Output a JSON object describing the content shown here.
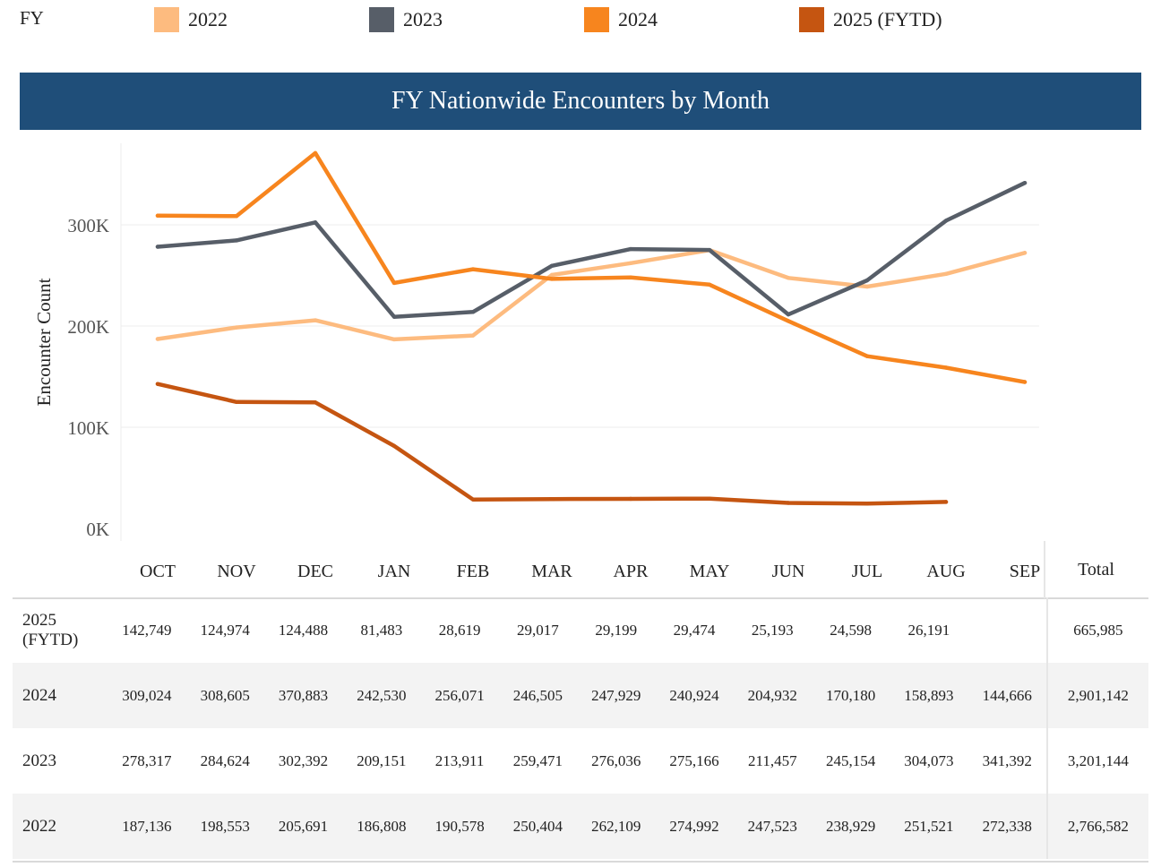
{
  "legend": {
    "title": "FY",
    "items": [
      {
        "label": "2022",
        "color": "#fdbb7f"
      },
      {
        "label": "2023",
        "color": "#575e68"
      },
      {
        "label": "2024",
        "color": "#f7851e"
      },
      {
        "label": "2025 (FYTD)",
        "color": "#c55511"
      }
    ]
  },
  "banner": {
    "title": "FY Nationwide Encounters by Month",
    "color": "#1f4e79"
  },
  "chart_data": {
    "type": "line",
    "title": "FY Nationwide Encounters by Month",
    "xlabel": "",
    "ylabel": "Encounter Count",
    "ylim": [
      0,
      380000
    ],
    "yticks": [
      0,
      100000,
      200000,
      300000
    ],
    "ytick_labels": [
      "0K",
      "100K",
      "200K",
      "300K"
    ],
    "grid": true,
    "categories": [
      "OCT",
      "NOV",
      "DEC",
      "JAN",
      "FEB",
      "MAR",
      "APR",
      "MAY",
      "JUN",
      "JUL",
      "AUG",
      "SEP"
    ],
    "series": [
      {
        "name": "2022",
        "color": "#fdbb7f",
        "values": [
          187136,
          198553,
          205691,
          186808,
          190578,
          250404,
          262109,
          274992,
          247523,
          238929,
          251521,
          272338
        ]
      },
      {
        "name": "2023",
        "color": "#575e68",
        "values": [
          278317,
          284624,
          302392,
          209151,
          213911,
          259471,
          276036,
          275166,
          211457,
          245154,
          304073,
          341392
        ]
      },
      {
        "name": "2024",
        "color": "#f7851e",
        "values": [
          309024,
          308605,
          370883,
          242530,
          256071,
          246505,
          247929,
          240924,
          204932,
          170180,
          158893,
          144666
        ]
      },
      {
        "name": "2025 (FYTD)",
        "color": "#c55511",
        "values": [
          142749,
          124974,
          124488,
          81483,
          28619,
          29017,
          29199,
          29474,
          25193,
          24598,
          26191,
          null
        ]
      }
    ]
  },
  "table": {
    "total_header": "Total",
    "rows": [
      {
        "fy": "2025 (FYTD)",
        "cells": [
          "142,749",
          "124,974",
          "124,488",
          "81,483",
          "28,619",
          "29,017",
          "29,199",
          "29,474",
          "25,193",
          "24,598",
          "26,191",
          ""
        ],
        "total": "665,985"
      },
      {
        "fy": "2024",
        "cells": [
          "309,024",
          "308,605",
          "370,883",
          "242,530",
          "256,071",
          "246,505",
          "247,929",
          "240,924",
          "204,932",
          "170,180",
          "158,893",
          "144,666"
        ],
        "total": "2,901,142"
      },
      {
        "fy": "2023",
        "cells": [
          "278,317",
          "284,624",
          "302,392",
          "209,151",
          "213,911",
          "259,471",
          "276,036",
          "275,166",
          "211,457",
          "245,154",
          "304,073",
          "341,392"
        ],
        "total": "3,201,144"
      },
      {
        "fy": "2022",
        "cells": [
          "187,136",
          "198,553",
          "205,691",
          "186,808",
          "190,578",
          "250,404",
          "262,109",
          "274,992",
          "247,523",
          "238,929",
          "251,521",
          "272,338"
        ],
        "total": "2,766,582"
      }
    ]
  }
}
